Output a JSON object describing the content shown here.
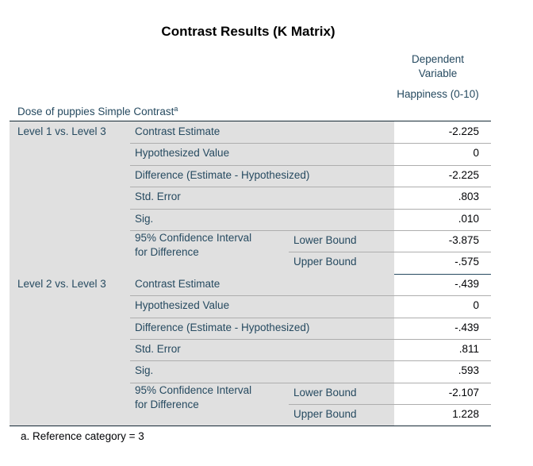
{
  "title": "Contrast Results (K Matrix)",
  "header": {
    "dependent_variable": "Dependent Variable",
    "variable_name": "Happiness (0-10)",
    "row_header": "Dose of puppies Simple Contrast",
    "row_header_sup": "a"
  },
  "groups": [
    {
      "label": "Level 1 vs. Level 3",
      "rows": [
        {
          "label": "Contrast Estimate",
          "value": "-2.225"
        },
        {
          "label": "Hypothesized Value",
          "value": "0"
        },
        {
          "label": "Difference (Estimate - Hypothesized)",
          "value": "-2.225"
        },
        {
          "label": "Std. Error",
          "value": ".803"
        },
        {
          "label": "Sig.",
          "value": ".010"
        }
      ],
      "ci": {
        "label_line1": "95% Confidence Interval",
        "label_line2": "for Difference",
        "lower_label": "Lower Bound",
        "lower_value": "-3.875",
        "upper_label": "Upper Bound",
        "upper_value": "-.575"
      }
    },
    {
      "label": "Level 2 vs. Level 3",
      "rows": [
        {
          "label": "Contrast Estimate",
          "value": "-.439"
        },
        {
          "label": "Hypothesized Value",
          "value": "0"
        },
        {
          "label": "Difference (Estimate - Hypothesized)",
          "value": "-.439"
        },
        {
          "label": "Std. Error",
          "value": ".811"
        },
        {
          "label": "Sig.",
          "value": ".593"
        }
      ],
      "ci": {
        "label_line1": "95% Confidence Interval",
        "label_line2": "for Difference",
        "lower_label": "Lower Bound",
        "lower_value": "-2.107",
        "upper_label": "Upper Bound",
        "upper_value": "1.228"
      }
    }
  ],
  "footnote": "a. Reference category = 3"
}
